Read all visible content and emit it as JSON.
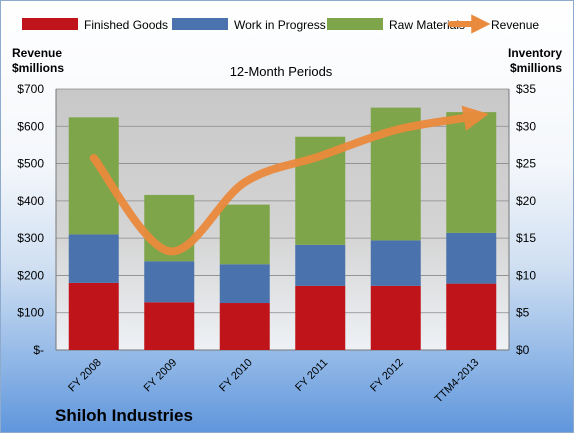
{
  "chart_data": {
    "type": "bar",
    "stacked": true,
    "subtitle": "12-Month Periods",
    "footer_title": "Shiloh Industries",
    "categories": [
      "FY 2008",
      "FY 2009",
      "FY 2010",
      "FY 2011",
      "FY 2012",
      "TTM4-2013"
    ],
    "left_axis": {
      "title_lines": [
        "Revenue",
        "$millions"
      ],
      "range": [
        0,
        700
      ],
      "ticks": [
        0,
        100,
        200,
        300,
        400,
        500,
        600,
        700
      ],
      "tick_labels": [
        "$-",
        "$100",
        "$200",
        "$300",
        "$400",
        "$500",
        "$600",
        "$700"
      ]
    },
    "right_axis": {
      "title_lines": [
        "Inventory",
        "$millions"
      ],
      "range": [
        0,
        35
      ],
      "ticks": [
        0,
        5,
        10,
        15,
        20,
        25,
        30,
        35
      ],
      "tick_labels": [
        "$0",
        "$5",
        "$10",
        "$15",
        "$20",
        "$25",
        "$30",
        "$35"
      ]
    },
    "series": [
      {
        "name": "Finished Goods",
        "axis": "right",
        "kind": "bar",
        "color": "#c0141b",
        "values": [
          9.0,
          6.4,
          6.3,
          8.6,
          8.6,
          8.9
        ]
      },
      {
        "name": "Work in Progress",
        "axis": "right",
        "kind": "bar",
        "color": "#4a72ac",
        "values": [
          6.5,
          5.5,
          5.2,
          5.5,
          6.1,
          6.8
        ]
      },
      {
        "name": "Raw Materials",
        "axis": "right",
        "kind": "bar",
        "color": "#7fa54a",
        "values": [
          15.7,
          8.9,
          8.0,
          14.5,
          17.8,
          16.2
        ]
      },
      {
        "name": "Revenue",
        "axis": "left",
        "kind": "line",
        "color": "#ea8a3c",
        "values": [
          515,
          265,
          450,
          520,
          590,
          625
        ]
      }
    ],
    "legend_position": "top",
    "plot_background": "#c8c8c8",
    "grid": true
  }
}
